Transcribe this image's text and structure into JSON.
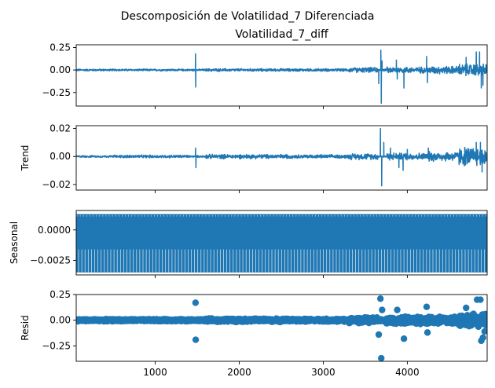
{
  "figure": {
    "suptitle": "Descomposición de Volatilidad_7 Diferenciada",
    "line_color": "#1f77b4"
  },
  "chart_data": [
    {
      "type": "line",
      "title": "Volatilidad_7_diff",
      "ylabel": "",
      "xlim": [
        60,
        4950
      ],
      "ylim": [
        -0.4,
        0.28
      ],
      "yticks": [
        -0.25,
        0.0,
        0.25
      ],
      "ytick_labels": [
        "−0.25",
        "0.00",
        "0.25"
      ],
      "xticks": [
        1000,
        2000,
        3000,
        4000
      ],
      "xtick_labels": [],
      "baseline": 0.0,
      "noise_regions": [
        {
          "x": [
            60,
            4950
          ],
          "amp": 0.013
        },
        {
          "x": [
            500,
            1400
          ],
          "amp": 0.012
        },
        {
          "x": [
            1600,
            2600
          ],
          "amp": 0.018
        },
        {
          "x": [
            2600,
            3300
          ],
          "amp": 0.018
        },
        {
          "x": [
            3300,
            3650
          ],
          "amp": 0.032
        },
        {
          "x": [
            3750,
            4250
          ],
          "amp": 0.04
        },
        {
          "x": [
            4250,
            4600
          ],
          "amp": 0.05
        },
        {
          "x": [
            4600,
            4950
          ],
          "amp": 0.08
        }
      ],
      "spikes": [
        {
          "x": 1480,
          "y": 0.18
        },
        {
          "x": 1482,
          "y": -0.19
        },
        {
          "x": 3660,
          "y": -0.15
        },
        {
          "x": 3685,
          "y": 0.22
        },
        {
          "x": 3690,
          "y": -0.37
        },
        {
          "x": 3700,
          "y": 0.1
        },
        {
          "x": 3870,
          "y": 0.11
        },
        {
          "x": 3880,
          "y": -0.1
        },
        {
          "x": 3960,
          "y": -0.2
        },
        {
          "x": 4230,
          "y": 0.15
        },
        {
          "x": 4240,
          "y": -0.14
        },
        {
          "x": 4700,
          "y": 0.14
        },
        {
          "x": 4820,
          "y": 0.2
        },
        {
          "x": 4860,
          "y": 0.2
        },
        {
          "x": 4880,
          "y": -0.2
        },
        {
          "x": 4900,
          "y": -0.17
        }
      ]
    },
    {
      "type": "line",
      "title": "",
      "ylabel": "Trend",
      "xlim": [
        60,
        4950
      ],
      "ylim": [
        -0.024,
        0.022
      ],
      "yticks": [
        -0.02,
        0.0,
        0.02
      ],
      "ytick_labels": [
        "−0.02",
        "0.00",
        "0.02"
      ],
      "xticks": [
        1000,
        2000,
        3000,
        4000
      ],
      "xtick_labels": [],
      "baseline": 0.0,
      "noise_regions": [
        {
          "x": [
            60,
            4950
          ],
          "amp": 0.0008
        },
        {
          "x": [
            500,
            1400
          ],
          "amp": 0.0012
        },
        {
          "x": [
            1600,
            2600
          ],
          "amp": 0.0018
        },
        {
          "x": [
            2600,
            3300
          ],
          "amp": 0.0015
        },
        {
          "x": [
            3300,
            3650
          ],
          "amp": 0.0025
        },
        {
          "x": [
            3750,
            4250
          ],
          "amp": 0.003
        },
        {
          "x": [
            4250,
            4600
          ],
          "amp": 0.004
        },
        {
          "x": [
            4600,
            4950
          ],
          "amp": 0.008
        }
      ],
      "spikes": [
        {
          "x": 1480,
          "y": 0.006
        },
        {
          "x": 1485,
          "y": -0.008
        },
        {
          "x": 3680,
          "y": 0.02
        },
        {
          "x": 3695,
          "y": -0.021
        },
        {
          "x": 3720,
          "y": 0.01
        },
        {
          "x": 3800,
          "y": 0.006
        },
        {
          "x": 3900,
          "y": -0.008
        },
        {
          "x": 3950,
          "y": -0.01
        },
        {
          "x": 4000,
          "y": 0.005
        },
        {
          "x": 4250,
          "y": 0.006
        },
        {
          "x": 4700,
          "y": 0.004
        },
        {
          "x": 4820,
          "y": 0.01
        },
        {
          "x": 4870,
          "y": 0.01
        },
        {
          "x": 4890,
          "y": -0.011
        }
      ]
    },
    {
      "type": "line",
      "title": "",
      "ylabel": "Seasonal",
      "xlim": [
        60,
        4950
      ],
      "ylim": [
        -0.0037,
        0.0016
      ],
      "yticks": [
        -0.0025,
        0.0
      ],
      "ytick_labels": [
        "−0.0025",
        "0.0000"
      ],
      "xticks": [
        1000,
        2000,
        3000,
        4000
      ],
      "xtick_labels": [],
      "seasonal": {
        "min": -0.0035,
        "max": 0.0013,
        "mid": -0.0016,
        "period": 7
      }
    },
    {
      "type": "scatter",
      "title": "",
      "ylabel": "Resid",
      "xlim": [
        60,
        4950
      ],
      "ylim": [
        -0.4,
        0.25
      ],
      "yticks": [
        -0.25,
        0.0,
        0.25
      ],
      "ytick_labels": [
        "−0.25",
        "0.00",
        "0.25"
      ],
      "xticks": [
        1000,
        2000,
        3000,
        4000
      ],
      "xtick_labels": [
        "1000",
        "2000",
        "3000",
        "4000"
      ],
      "baseline": 0.0,
      "noise_regions": [
        {
          "x": [
            60,
            4950
          ],
          "amp": 0.012
        },
        {
          "x": [
            500,
            1400
          ],
          "amp": 0.012
        },
        {
          "x": [
            1600,
            2600
          ],
          "amp": 0.018
        },
        {
          "x": [
            2600,
            3300
          ],
          "amp": 0.016
        },
        {
          "x": [
            3300,
            3650
          ],
          "amp": 0.03
        },
        {
          "x": [
            3750,
            4250
          ],
          "amp": 0.04
        },
        {
          "x": [
            4250,
            4600
          ],
          "amp": 0.05
        },
        {
          "x": [
            4600,
            4950
          ],
          "amp": 0.07
        }
      ],
      "spikes": [
        {
          "x": 1480,
          "y": 0.17
        },
        {
          "x": 1482,
          "y": -0.19
        },
        {
          "x": 3680,
          "y": 0.21
        },
        {
          "x": 3690,
          "y": -0.37
        },
        {
          "x": 3700,
          "y": 0.1
        },
        {
          "x": 3660,
          "y": -0.14
        },
        {
          "x": 3880,
          "y": 0.1
        },
        {
          "x": 3960,
          "y": -0.18
        },
        {
          "x": 4230,
          "y": 0.13
        },
        {
          "x": 4240,
          "y": -0.12
        },
        {
          "x": 4700,
          "y": 0.12
        },
        {
          "x": 4830,
          "y": 0.2
        },
        {
          "x": 4870,
          "y": 0.2
        },
        {
          "x": 4880,
          "y": -0.2
        },
        {
          "x": 4900,
          "y": -0.17
        },
        {
          "x": 4920,
          "y": -0.11
        }
      ]
    }
  ]
}
